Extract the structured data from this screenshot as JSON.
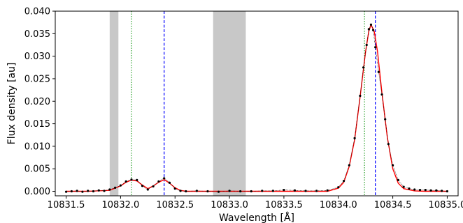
{
  "chart_data": {
    "type": "line",
    "title": "",
    "xlabel": "Wavelength [Å]",
    "ylabel": "Flux density [au]",
    "xlim": [
      10831.4,
      10835.1
    ],
    "ylim": [
      -0.001,
      0.04
    ],
    "xticks": [
      10831.5,
      10832.0,
      10832.5,
      10833.0,
      10833.5,
      10834.0,
      10834.5,
      10835.0
    ],
    "xtick_labels": [
      "10831.5",
      "10832.0",
      "10832.5",
      "10833.0",
      "10833.5",
      "10834.0",
      "10834.5",
      "10835.0"
    ],
    "yticks": [
      0.0,
      0.005,
      0.01,
      0.015,
      0.02,
      0.025,
      0.03,
      0.035,
      0.04
    ],
    "ytick_labels": [
      "0.000",
      "0.005",
      "0.010",
      "0.015",
      "0.020",
      "0.025",
      "0.030",
      "0.035",
      "0.040"
    ],
    "grid": false,
    "shaded_regions": [
      [
        10831.9,
        10831.98
      ],
      [
        10832.85,
        10833.15
      ]
    ],
    "vlines": [
      {
        "x": 10832.1,
        "color": "#2ca02c",
        "style": "dotted"
      },
      {
        "x": 10832.4,
        "color": "#0000ff",
        "style": "dashed"
      },
      {
        "x": 10834.24,
        "color": "#2ca02c",
        "style": "dotted"
      },
      {
        "x": 10834.34,
        "color": "#0000ff",
        "style": "dashed"
      }
    ],
    "series": [
      {
        "kind": "model",
        "color": "#ff0000",
        "x": [
          10831.5,
          10831.7,
          10831.9,
          10832.0,
          10832.05,
          10832.1,
          10832.15,
          10832.2,
          10832.25,
          10832.3,
          10832.35,
          10832.4,
          10832.45,
          10832.5,
          10832.55,
          10832.6,
          10832.8,
          10833.2,
          10833.6,
          10833.9,
          10834.0,
          10834.05,
          10834.1,
          10834.15,
          10834.2,
          10834.25,
          10834.28,
          10834.3,
          10834.33,
          10834.36,
          10834.4,
          10834.45,
          10834.5,
          10834.55,
          10834.6,
          10834.7,
          10834.8,
          10835.0
        ],
        "y": [
          0.0,
          0.0,
          0.0002,
          0.0012,
          0.002,
          0.0025,
          0.0023,
          0.0014,
          0.0006,
          0.0012,
          0.002,
          0.0026,
          0.0018,
          0.0008,
          0.0002,
          0.0,
          0.0,
          0.0,
          0.0,
          0.0,
          0.0007,
          0.002,
          0.0055,
          0.0115,
          0.021,
          0.031,
          0.0355,
          0.037,
          0.0355,
          0.031,
          0.022,
          0.012,
          0.005,
          0.0018,
          0.0006,
          0.0001,
          0.0,
          0.0
        ]
      },
      {
        "kind": "observed",
        "color": "#000000",
        "x": [
          10831.5,
          10831.55,
          10831.6,
          10831.65,
          10831.7,
          10831.75,
          10831.8,
          10831.85,
          10831.9,
          10831.95,
          10832.0,
          10832.05,
          10832.1,
          10832.15,
          10832.2,
          10832.25,
          10832.3,
          10832.35,
          10832.4,
          10832.45,
          10832.5,
          10832.55,
          10832.6,
          10832.7,
          10832.8,
          10832.9,
          10833.0,
          10833.1,
          10833.2,
          10833.3,
          10833.4,
          10833.5,
          10833.6,
          10833.7,
          10833.8,
          10833.9,
          10834.0,
          10834.05,
          10834.1,
          10834.15,
          10834.2,
          10834.23,
          10834.26,
          10834.28,
          10834.3,
          10834.32,
          10834.34,
          10834.37,
          10834.4,
          10834.43,
          10834.46,
          10834.5,
          10834.55,
          10834.6,
          10834.65,
          10834.7,
          10834.75,
          10834.8,
          10834.85,
          10834.9,
          10834.95,
          10835.0
        ],
        "y": [
          -0.0001,
          0.0,
          0.0001,
          -0.0001,
          0.0001,
          0.0,
          0.0002,
          0.0001,
          0.0004,
          0.0008,
          0.0013,
          0.0022,
          0.0026,
          0.0025,
          0.0012,
          0.0004,
          0.0011,
          0.0022,
          0.0029,
          0.0019,
          0.0006,
          0.0001,
          0.0,
          0.0001,
          0.0,
          -0.0001,
          0.0001,
          0.0,
          0.0,
          0.0001,
          0.0001,
          0.0003,
          0.0002,
          0.0001,
          0.0001,
          0.0002,
          0.0009,
          0.0023,
          0.0058,
          0.0118,
          0.0212,
          0.0275,
          0.0325,
          0.036,
          0.037,
          0.0358,
          0.032,
          0.0265,
          0.0215,
          0.016,
          0.0105,
          0.0058,
          0.0025,
          0.001,
          0.0006,
          0.0004,
          0.0003,
          0.0003,
          0.0002,
          0.0002,
          0.0001,
          0.0
        ]
      }
    ]
  }
}
